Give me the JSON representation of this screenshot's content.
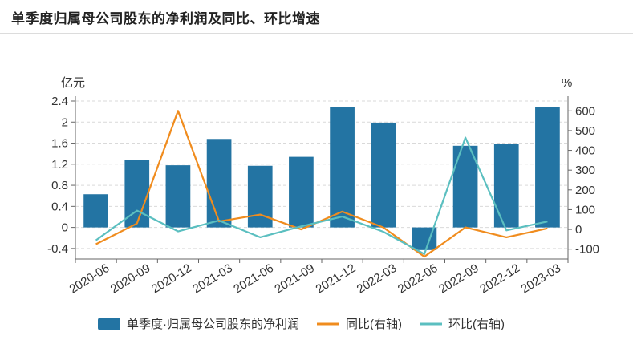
{
  "header": {
    "title": "单季度归属母公司股东的净利润及同比、环比增速"
  },
  "chart_data": {
    "type": "bar+line",
    "categories": [
      "2020-06",
      "2020-09",
      "2020-12",
      "2021-03",
      "2021-06",
      "2021-09",
      "2021-12",
      "2022-03",
      "2022-06",
      "2022-09",
      "2022-12",
      "2023-03"
    ],
    "left_axis": {
      "unit": "亿元",
      "ylim": [
        -0.6,
        2.4
      ],
      "ticks": [
        -0.4,
        0,
        0.4,
        0.8,
        1.2,
        1.6,
        2,
        2.4
      ]
    },
    "right_axis": {
      "unit": "%",
      "ylim": [
        -150,
        650
      ],
      "ticks": [
        -100,
        0,
        100,
        200,
        300,
        400,
        500,
        600
      ]
    },
    "series": [
      {
        "name": "单季度·归属母公司股东的净利润",
        "type": "bar",
        "axis": "left",
        "color": "#2374a3",
        "values": [
          0.63,
          1.28,
          1.18,
          1.68,
          1.17,
          1.34,
          2.28,
          1.99,
          -0.43,
          1.55,
          1.59,
          2.29
        ]
      },
      {
        "name": "同比(右轴)",
        "type": "line",
        "axis": "right",
        "color": "#f08c1e",
        "values": [
          -75,
          30,
          600,
          40,
          75,
          0,
          90,
          10,
          -138,
          10,
          -40,
          5
        ]
      },
      {
        "name": "环比(右轴)",
        "type": "line",
        "axis": "right",
        "color": "#5bbfc0",
        "values": [
          -55,
          95,
          -10,
          45,
          -40,
          15,
          65,
          -12,
          -125,
          465,
          -5,
          40
        ]
      }
    ],
    "grid": "horizontal-dashed",
    "legend": "bottom"
  }
}
